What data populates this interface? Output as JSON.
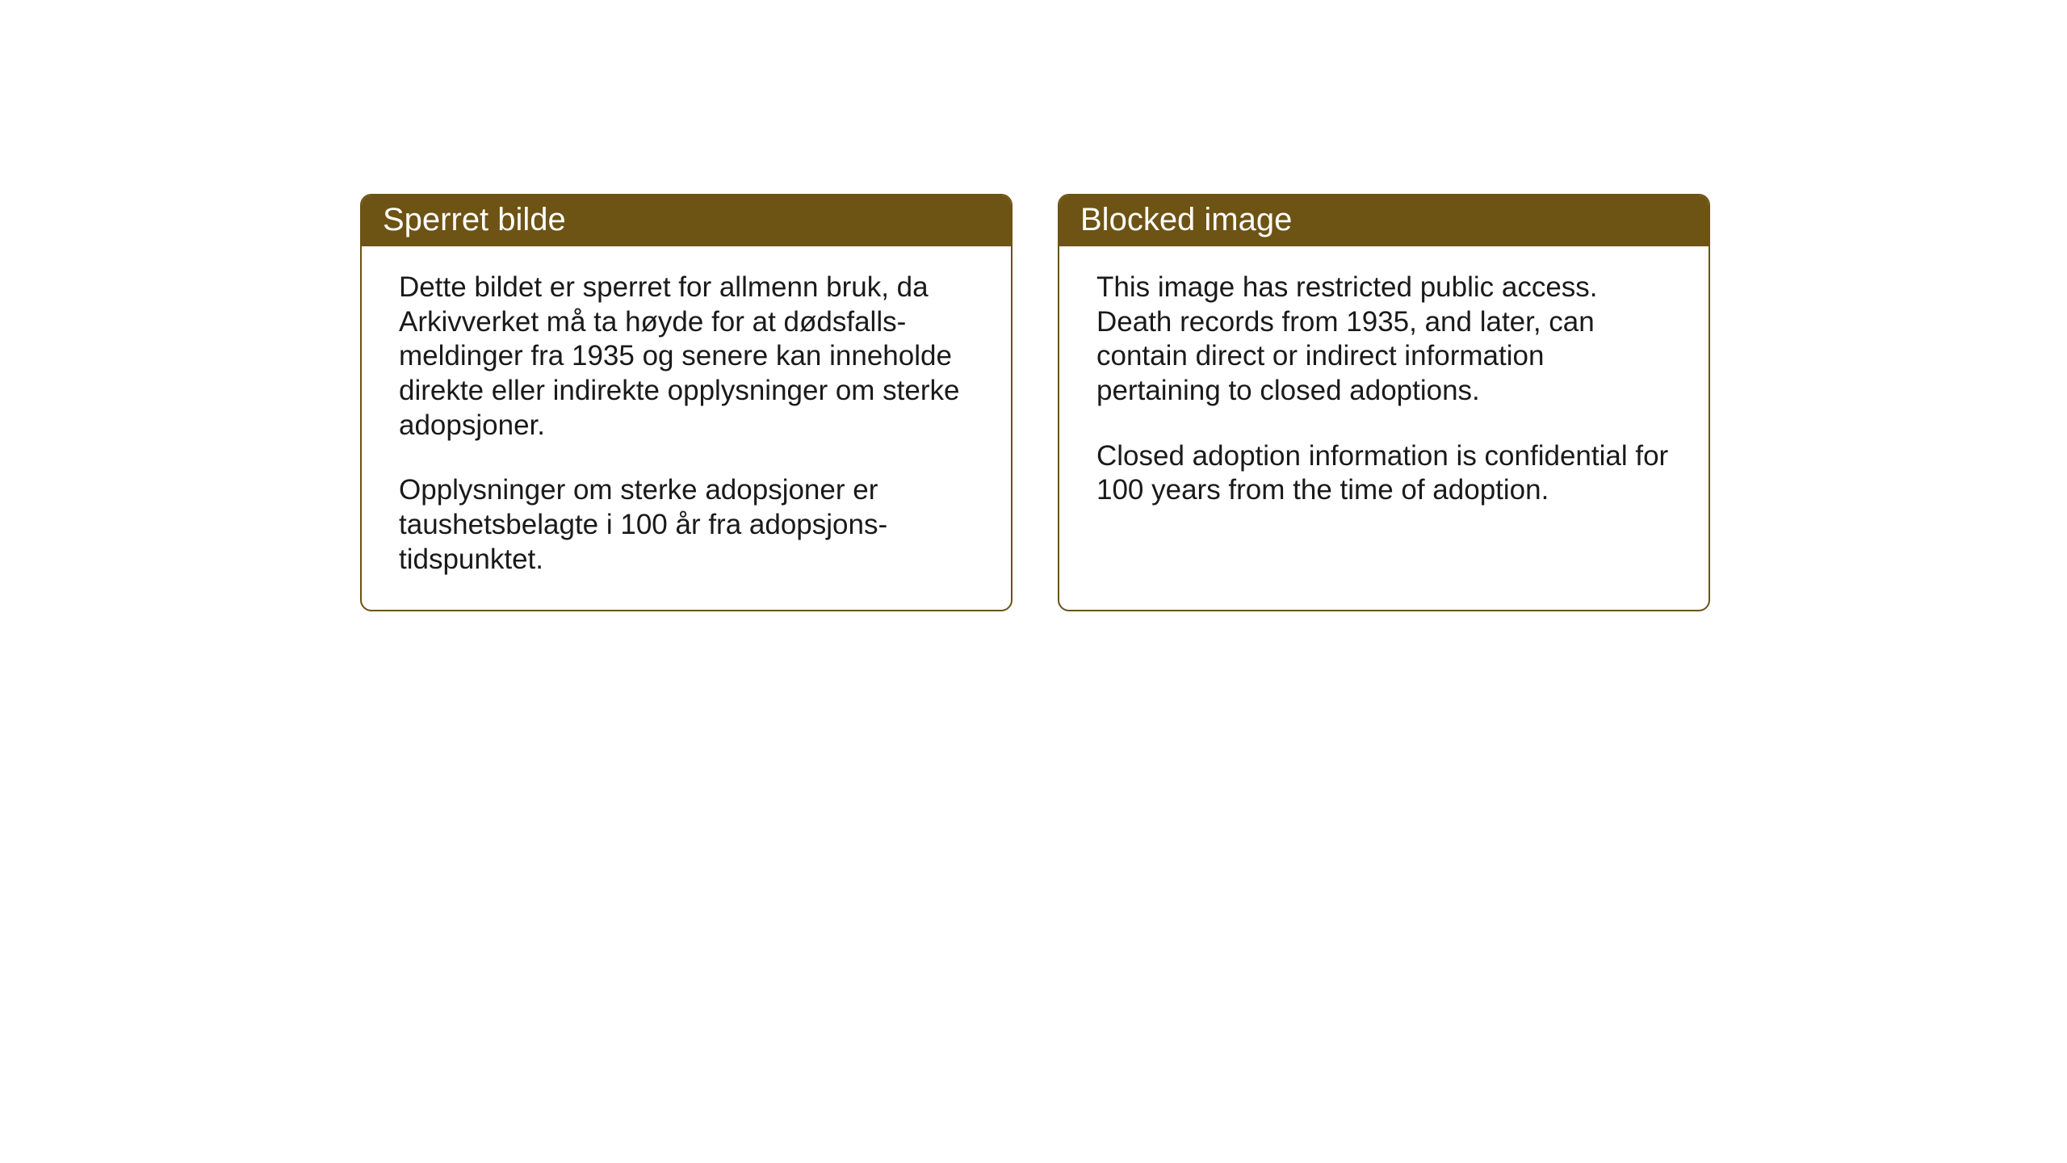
{
  "cards": {
    "norwegian": {
      "title": "Sperret bilde",
      "paragraph1": "Dette bildet er sperret for allmenn bruk, da Arkivverket må ta høyde for at dødsfalls-meldinger fra 1935 og senere kan inneholde direkte eller indirekte opplysninger om sterke adopsjoner.",
      "paragraph2": "Opplysninger om sterke adopsjoner er taushetsbelagte i 100 år fra adopsjons-tidspunktet."
    },
    "english": {
      "title": "Blocked image",
      "paragraph1": "This image has restricted public access. Death records from 1935, and later, can contain direct or indirect information pertaining to closed adoptions.",
      "paragraph2": "Closed adoption information is confidential for 100 years from the time of adoption."
    }
  },
  "styling": {
    "header_background": "#6d5314",
    "header_text_color": "#ffffff",
    "border_color": "#6d5314",
    "body_text_color": "#1a1a1a",
    "page_background": "#ffffff",
    "border_radius": 14,
    "title_fontsize": 40,
    "body_fontsize": 35
  }
}
